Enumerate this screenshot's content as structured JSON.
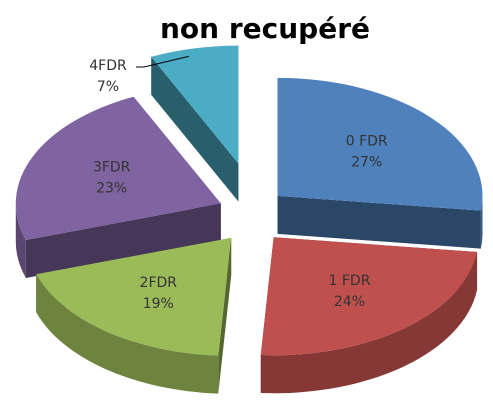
{
  "chart_data": {
    "type": "pie",
    "title": "non recupéré",
    "categories": [
      "0 FDR",
      "1 FDR",
      "2FDR",
      "3FDR",
      "4FDR"
    ],
    "values": [
      27,
      24,
      19,
      23,
      7
    ],
    "value_labels": [
      "27%",
      "24%",
      "19%",
      "23%",
      "7%"
    ],
    "colors": [
      "#4f81bd",
      "#c0504d",
      "#9bbb59",
      "#8064a2",
      "#4bacc6"
    ],
    "three_d": true,
    "exploded": true
  }
}
